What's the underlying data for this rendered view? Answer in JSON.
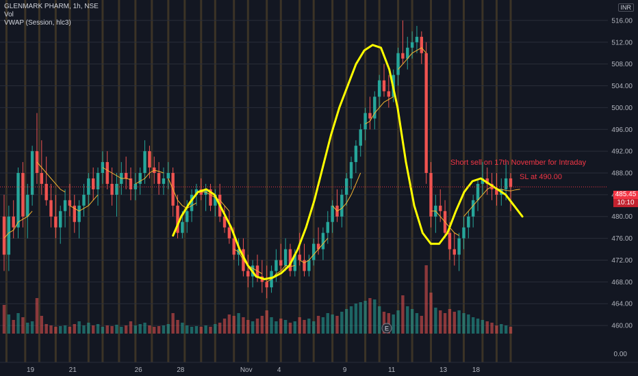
{
  "legend": {
    "symbol": "GLENMARK PHARM, 1h, NSE",
    "vol": "Vol",
    "vwap": "VWAP (Session, hlc3)"
  },
  "currency": "INR",
  "annotations": {
    "short_sell": "Short sell on 17th November for Intraday",
    "stop_loss": "SL at 490.00"
  },
  "last_price": "485.45",
  "countdown": "10:10",
  "colors": {
    "background": "#131722",
    "up": "#26a69a",
    "down": "#ef5350",
    "vwap": "#f7b731",
    "drawing": "#ffff00",
    "session_band": "#5d4a2a"
  },
  "chart_data": {
    "type": "candlestick",
    "title": "GLENMARK PHARM, 1h, NSE",
    "currency": "INR",
    "x_ticks": [
      "19",
      "21",
      "26",
      "28",
      "Nov",
      "4",
      "9",
      "11",
      "13",
      "18"
    ],
    "y_ticks": [
      516.0,
      512.0,
      508.0,
      504.0,
      500.0,
      496.0,
      492.0,
      488.0,
      484.0,
      480.0,
      476.0,
      472.0,
      468.0,
      464.0,
      460.0
    ],
    "volume_axis_label": "0.00",
    "ylim": [
      457.5,
      518.5
    ],
    "last_price": 485.45,
    "candles": [
      {
        "o": 480,
        "h": 484,
        "l": 470,
        "c": 473
      },
      {
        "o": 473,
        "h": 482,
        "l": 470,
        "c": 480
      },
      {
        "o": 480,
        "h": 483,
        "l": 476,
        "c": 478
      },
      {
        "o": 478,
        "h": 489,
        "l": 476,
        "c": 488
      },
      {
        "o": 488,
        "h": 490,
        "l": 478,
        "c": 480
      },
      {
        "o": 480,
        "h": 486,
        "l": 476,
        "c": 484
      },
      {
        "o": 484,
        "h": 493,
        "l": 482,
        "c": 492
      },
      {
        "o": 492,
        "h": 499,
        "l": 486,
        "c": 488
      },
      {
        "o": 488,
        "h": 494,
        "l": 484,
        "c": 486
      },
      {
        "o": 486,
        "h": 491,
        "l": 482,
        "c": 483
      },
      {
        "o": 483,
        "h": 486,
        "l": 478,
        "c": 480
      },
      {
        "o": 480,
        "h": 484,
        "l": 476,
        "c": 478
      },
      {
        "o": 478,
        "h": 482,
        "l": 475,
        "c": 481
      },
      {
        "o": 481,
        "h": 485,
        "l": 478,
        "c": 483
      },
      {
        "o": 483,
        "h": 486,
        "l": 480,
        "c": 482
      },
      {
        "o": 482,
        "h": 484,
        "l": 477,
        "c": 479
      },
      {
        "o": 479,
        "h": 483,
        "l": 476,
        "c": 482
      },
      {
        "o": 482,
        "h": 486,
        "l": 480,
        "c": 484
      },
      {
        "o": 484,
        "h": 488,
        "l": 482,
        "c": 487
      },
      {
        "o": 487,
        "h": 489,
        "l": 483,
        "c": 485
      },
      {
        "o": 485,
        "h": 489,
        "l": 482,
        "c": 488
      },
      {
        "o": 488,
        "h": 492,
        "l": 486,
        "c": 490
      },
      {
        "o": 490,
        "h": 492,
        "l": 485,
        "c": 486
      },
      {
        "o": 486,
        "h": 489,
        "l": 482,
        "c": 484
      },
      {
        "o": 484,
        "h": 488,
        "l": 480,
        "c": 486
      },
      {
        "o": 486,
        "h": 490,
        "l": 484,
        "c": 488
      },
      {
        "o": 488,
        "h": 491,
        "l": 485,
        "c": 487
      },
      {
        "o": 487,
        "h": 489,
        "l": 483,
        "c": 485
      },
      {
        "o": 485,
        "h": 488,
        "l": 483,
        "c": 486
      },
      {
        "o": 486,
        "h": 489,
        "l": 484,
        "c": 488
      },
      {
        "o": 488,
        "h": 494,
        "l": 486,
        "c": 492
      },
      {
        "o": 492,
        "h": 493,
        "l": 487,
        "c": 489
      },
      {
        "o": 489,
        "h": 491,
        "l": 486,
        "c": 488
      },
      {
        "o": 488,
        "h": 490,
        "l": 484,
        "c": 486
      },
      {
        "o": 486,
        "h": 489,
        "l": 484,
        "c": 487
      },
      {
        "o": 487,
        "h": 490,
        "l": 485,
        "c": 488
      },
      {
        "o": 488,
        "h": 489,
        "l": 480,
        "c": 482
      },
      {
        "o": 482,
        "h": 484,
        "l": 476,
        "c": 477
      },
      {
        "o": 477,
        "h": 481,
        "l": 476,
        "c": 479
      },
      {
        "o": 479,
        "h": 483,
        "l": 477,
        "c": 481
      },
      {
        "o": 481,
        "h": 485,
        "l": 479,
        "c": 484
      },
      {
        "o": 484,
        "h": 486,
        "l": 482,
        "c": 485
      },
      {
        "o": 485,
        "h": 487,
        "l": 483,
        "c": 484
      },
      {
        "o": 484,
        "h": 486,
        "l": 481,
        "c": 485
      },
      {
        "o": 485,
        "h": 486,
        "l": 481,
        "c": 482
      },
      {
        "o": 482,
        "h": 485,
        "l": 480,
        "c": 484
      },
      {
        "o": 484,
        "h": 486,
        "l": 479,
        "c": 480
      },
      {
        "o": 480,
        "h": 482,
        "l": 477,
        "c": 478
      },
      {
        "o": 478,
        "h": 481,
        "l": 475,
        "c": 476
      },
      {
        "o": 476,
        "h": 478,
        "l": 472,
        "c": 473
      },
      {
        "o": 473,
        "h": 476,
        "l": 471,
        "c": 474
      },
      {
        "o": 474,
        "h": 476,
        "l": 469,
        "c": 470
      },
      {
        "o": 470,
        "h": 473,
        "l": 467,
        "c": 469
      },
      {
        "o": 469,
        "h": 472,
        "l": 467,
        "c": 471
      },
      {
        "o": 471,
        "h": 473,
        "l": 468,
        "c": 469
      },
      {
        "o": 469,
        "h": 472,
        "l": 466,
        "c": 468
      },
      {
        "o": 468,
        "h": 471,
        "l": 465,
        "c": 467
      },
      {
        "o": 467,
        "h": 471,
        "l": 466,
        "c": 470
      },
      {
        "o": 470,
        "h": 474,
        "l": 468,
        "c": 472
      },
      {
        "o": 472,
        "h": 475,
        "l": 470,
        "c": 471
      },
      {
        "o": 471,
        "h": 476,
        "l": 470,
        "c": 474
      },
      {
        "o": 474,
        "h": 475,
        "l": 469,
        "c": 470
      },
      {
        "o": 470,
        "h": 474,
        "l": 469,
        "c": 473
      },
      {
        "o": 473,
        "h": 477,
        "l": 471,
        "c": 472
      },
      {
        "o": 472,
        "h": 475,
        "l": 469,
        "c": 470
      },
      {
        "o": 470,
        "h": 473,
        "l": 469,
        "c": 472
      },
      {
        "o": 472,
        "h": 476,
        "l": 471,
        "c": 475
      },
      {
        "o": 475,
        "h": 478,
        "l": 473,
        "c": 474
      },
      {
        "o": 474,
        "h": 478,
        "l": 472,
        "c": 477
      },
      {
        "o": 477,
        "h": 481,
        "l": 475,
        "c": 479
      },
      {
        "o": 479,
        "h": 483,
        "l": 477,
        "c": 482
      },
      {
        "o": 482,
        "h": 485,
        "l": 479,
        "c": 480
      },
      {
        "o": 480,
        "h": 485,
        "l": 478,
        "c": 484
      },
      {
        "o": 484,
        "h": 488,
        "l": 482,
        "c": 487
      },
      {
        "o": 487,
        "h": 491,
        "l": 485,
        "c": 490
      },
      {
        "o": 490,
        "h": 494,
        "l": 488,
        "c": 493
      },
      {
        "o": 493,
        "h": 497,
        "l": 491,
        "c": 496
      },
      {
        "o": 496,
        "h": 500,
        "l": 494,
        "c": 499
      },
      {
        "o": 499,
        "h": 502,
        "l": 496,
        "c": 498
      },
      {
        "o": 498,
        "h": 503,
        "l": 496,
        "c": 502
      },
      {
        "o": 502,
        "h": 506,
        "l": 500,
        "c": 505
      },
      {
        "o": 505,
        "h": 508,
        "l": 502,
        "c": 503
      },
      {
        "o": 503,
        "h": 506,
        "l": 500,
        "c": 502
      },
      {
        "o": 502,
        "h": 507,
        "l": 501,
        "c": 506
      },
      {
        "o": 506,
        "h": 511,
        "l": 504,
        "c": 510
      },
      {
        "o": 510,
        "h": 516,
        "l": 508,
        "c": 509
      },
      {
        "o": 509,
        "h": 513,
        "l": 507,
        "c": 511
      },
      {
        "o": 511,
        "h": 514,
        "l": 509,
        "c": 512
      },
      {
        "o": 512,
        "h": 515,
        "l": 510,
        "c": 513
      },
      {
        "o": 513,
        "h": 514,
        "l": 508,
        "c": 510
      },
      {
        "o": 510,
        "h": 512,
        "l": 486,
        "c": 488
      },
      {
        "o": 488,
        "h": 490,
        "l": 478,
        "c": 480
      },
      {
        "o": 480,
        "h": 484,
        "l": 477,
        "c": 482
      },
      {
        "o": 482,
        "h": 485,
        "l": 479,
        "c": 481
      },
      {
        "o": 481,
        "h": 483,
        "l": 476,
        "c": 477
      },
      {
        "o": 477,
        "h": 479,
        "l": 472,
        "c": 474
      },
      {
        "o": 474,
        "h": 477,
        "l": 471,
        "c": 473
      },
      {
        "o": 473,
        "h": 477,
        "l": 470,
        "c": 476
      },
      {
        "o": 476,
        "h": 480,
        "l": 474,
        "c": 478
      },
      {
        "o": 478,
        "h": 481,
        "l": 476,
        "c": 480
      },
      {
        "o": 480,
        "h": 484,
        "l": 478,
        "c": 483
      },
      {
        "o": 483,
        "h": 487,
        "l": 481,
        "c": 486
      },
      {
        "o": 486,
        "h": 490,
        "l": 484,
        "c": 487
      },
      {
        "o": 487,
        "h": 489,
        "l": 484,
        "c": 486
      },
      {
        "o": 486,
        "h": 488,
        "l": 483,
        "c": 485
      },
      {
        "o": 485,
        "h": 488,
        "l": 482,
        "c": 484
      },
      {
        "o": 484,
        "h": 487,
        "l": 482,
        "c": 485
      },
      {
        "o": 485,
        "h": 490,
        "l": 483,
        "c": 487
      },
      {
        "o": 487,
        "h": 488,
        "l": 481,
        "c": 485.45
      }
    ],
    "volume": [
      42,
      28,
      20,
      30,
      24,
      16,
      18,
      52,
      26,
      14,
      12,
      10,
      11,
      12,
      10,
      14,
      18,
      12,
      16,
      12,
      14,
      10,
      12,
      11,
      13,
      10,
      12,
      18,
      12,
      14,
      16,
      12,
      10,
      11,
      12,
      14,
      30,
      20,
      16,
      12,
      10,
      11,
      10,
      12,
      10,
      14,
      16,
      22,
      28,
      26,
      30,
      24,
      20,
      18,
      22,
      26,
      34,
      24,
      18,
      22,
      20,
      16,
      18,
      24,
      20,
      22,
      18,
      26,
      24,
      30,
      28,
      26,
      32,
      36,
      40,
      44,
      46,
      48,
      52,
      50,
      40,
      32,
      30,
      28,
      34,
      56,
      40,
      36,
      30,
      26,
      100,
      60,
      38,
      34,
      30,
      36,
      32,
      34,
      30,
      28,
      24,
      22,
      20,
      18,
      16,
      12,
      14,
      12,
      10
    ],
    "vwap_sessions": [
      {
        "from": 0,
        "to": 6,
        "values": [
          476,
          477,
          477.5,
          479,
          479.5,
          480,
          481
        ]
      },
      {
        "from": 7,
        "to": 13,
        "values": [
          490,
          489,
          488,
          487,
          486,
          485,
          484.5
        ]
      },
      {
        "from": 14,
        "to": 20,
        "values": [
          482,
          481.5,
          481,
          481.5,
          482,
          483,
          484
        ]
      },
      {
        "from": 21,
        "to": 27,
        "values": [
          489,
          488.5,
          488,
          487.5,
          487,
          487,
          486.8
        ]
      },
      {
        "from": 28,
        "to": 34,
        "values": [
          486,
          486.5,
          487,
          488,
          488.5,
          488.3,
          488
        ]
      },
      {
        "from": 35,
        "to": 41,
        "values": [
          487,
          485,
          483,
          482,
          481.5,
          482,
          482.5
        ]
      },
      {
        "from": 42,
        "to": 48,
        "values": [
          484.5,
          484.5,
          484,
          483.5,
          483,
          482,
          481
        ]
      },
      {
        "from": 49,
        "to": 55,
        "values": [
          474,
          473.5,
          472,
          471,
          470.5,
          470,
          469.5
        ]
      },
      {
        "from": 56,
        "to": 62,
        "values": [
          468,
          468.5,
          469.5,
          470,
          471,
          470.8,
          471
        ]
      },
      {
        "from": 63,
        "to": 69,
        "values": [
          472,
          471.5,
          472,
          473,
          474,
          475,
          476
        ]
      },
      {
        "from": 70,
        "to": 76,
        "values": [
          482,
          481,
          481.5,
          482.5,
          484,
          486,
          488
        ]
      },
      {
        "from": 77,
        "to": 83,
        "values": [
          497,
          497.5,
          499,
          500,
          501,
          501.5,
          502
        ]
      },
      {
        "from": 84,
        "to": 90,
        "values": [
          507,
          508,
          509,
          510,
          510.5,
          511,
          510
        ]
      },
      {
        "from": 91,
        "to": 97,
        "values": [
          481,
          481,
          480,
          479,
          478,
          477,
          476.5
        ]
      },
      {
        "from": 98,
        "to": 104,
        "values": [
          480,
          481,
          482,
          483,
          484,
          485,
          485.5
        ]
      },
      {
        "from": 105,
        "to": 110,
        "values": [
          485,
          485,
          484.8,
          484.7,
          484.9,
          485
        ]
      }
    ],
    "drawing_path": [
      [
        482,
        476.5
      ],
      [
        484,
        480
      ],
      [
        486,
        482.5
      ],
      [
        489,
        484.5
      ],
      [
        491,
        485
      ],
      [
        493,
        484
      ],
      [
        497,
        481
      ],
      [
        500,
        478
      ],
      [
        503,
        474
      ],
      [
        506,
        471
      ],
      [
        508,
        469
      ],
      [
        511,
        468.5
      ],
      [
        514,
        468.8
      ],
      [
        517,
        469.6
      ],
      [
        520,
        471
      ],
      [
        523,
        474
      ],
      [
        527,
        478
      ],
      [
        531,
        483
      ],
      [
        535,
        489
      ],
      [
        539,
        495
      ],
      [
        543,
        500
      ],
      [
        546,
        504
      ],
      [
        550,
        508
      ],
      [
        553,
        510.5
      ],
      [
        556,
        511.5
      ],
      [
        558,
        511
      ],
      [
        561,
        507
      ],
      [
        564,
        500
      ],
      [
        567,
        490
      ],
      [
        570,
        482
      ],
      [
        573,
        477
      ],
      [
        576,
        475
      ],
      [
        578,
        475
      ],
      [
        581,
        477
      ],
      [
        584,
        481
      ],
      [
        586,
        484.5
      ],
      [
        589,
        486.5
      ],
      [
        592,
        487
      ],
      [
        595,
        486
      ],
      [
        598,
        485
      ],
      [
        600,
        484
      ],
      [
        602,
        482
      ],
      [
        604,
        480
      ]
    ],
    "session_bands": [
      0.5,
      4.5,
      7.5,
      11,
      14,
      18,
      21,
      24.5,
      28,
      31.5,
      35,
      38.5,
      42,
      45,
      49,
      52,
      56,
      59,
      63,
      66,
      70,
      73,
      77,
      80,
      84,
      87,
      91,
      95,
      98,
      102,
      105,
      108
    ]
  }
}
